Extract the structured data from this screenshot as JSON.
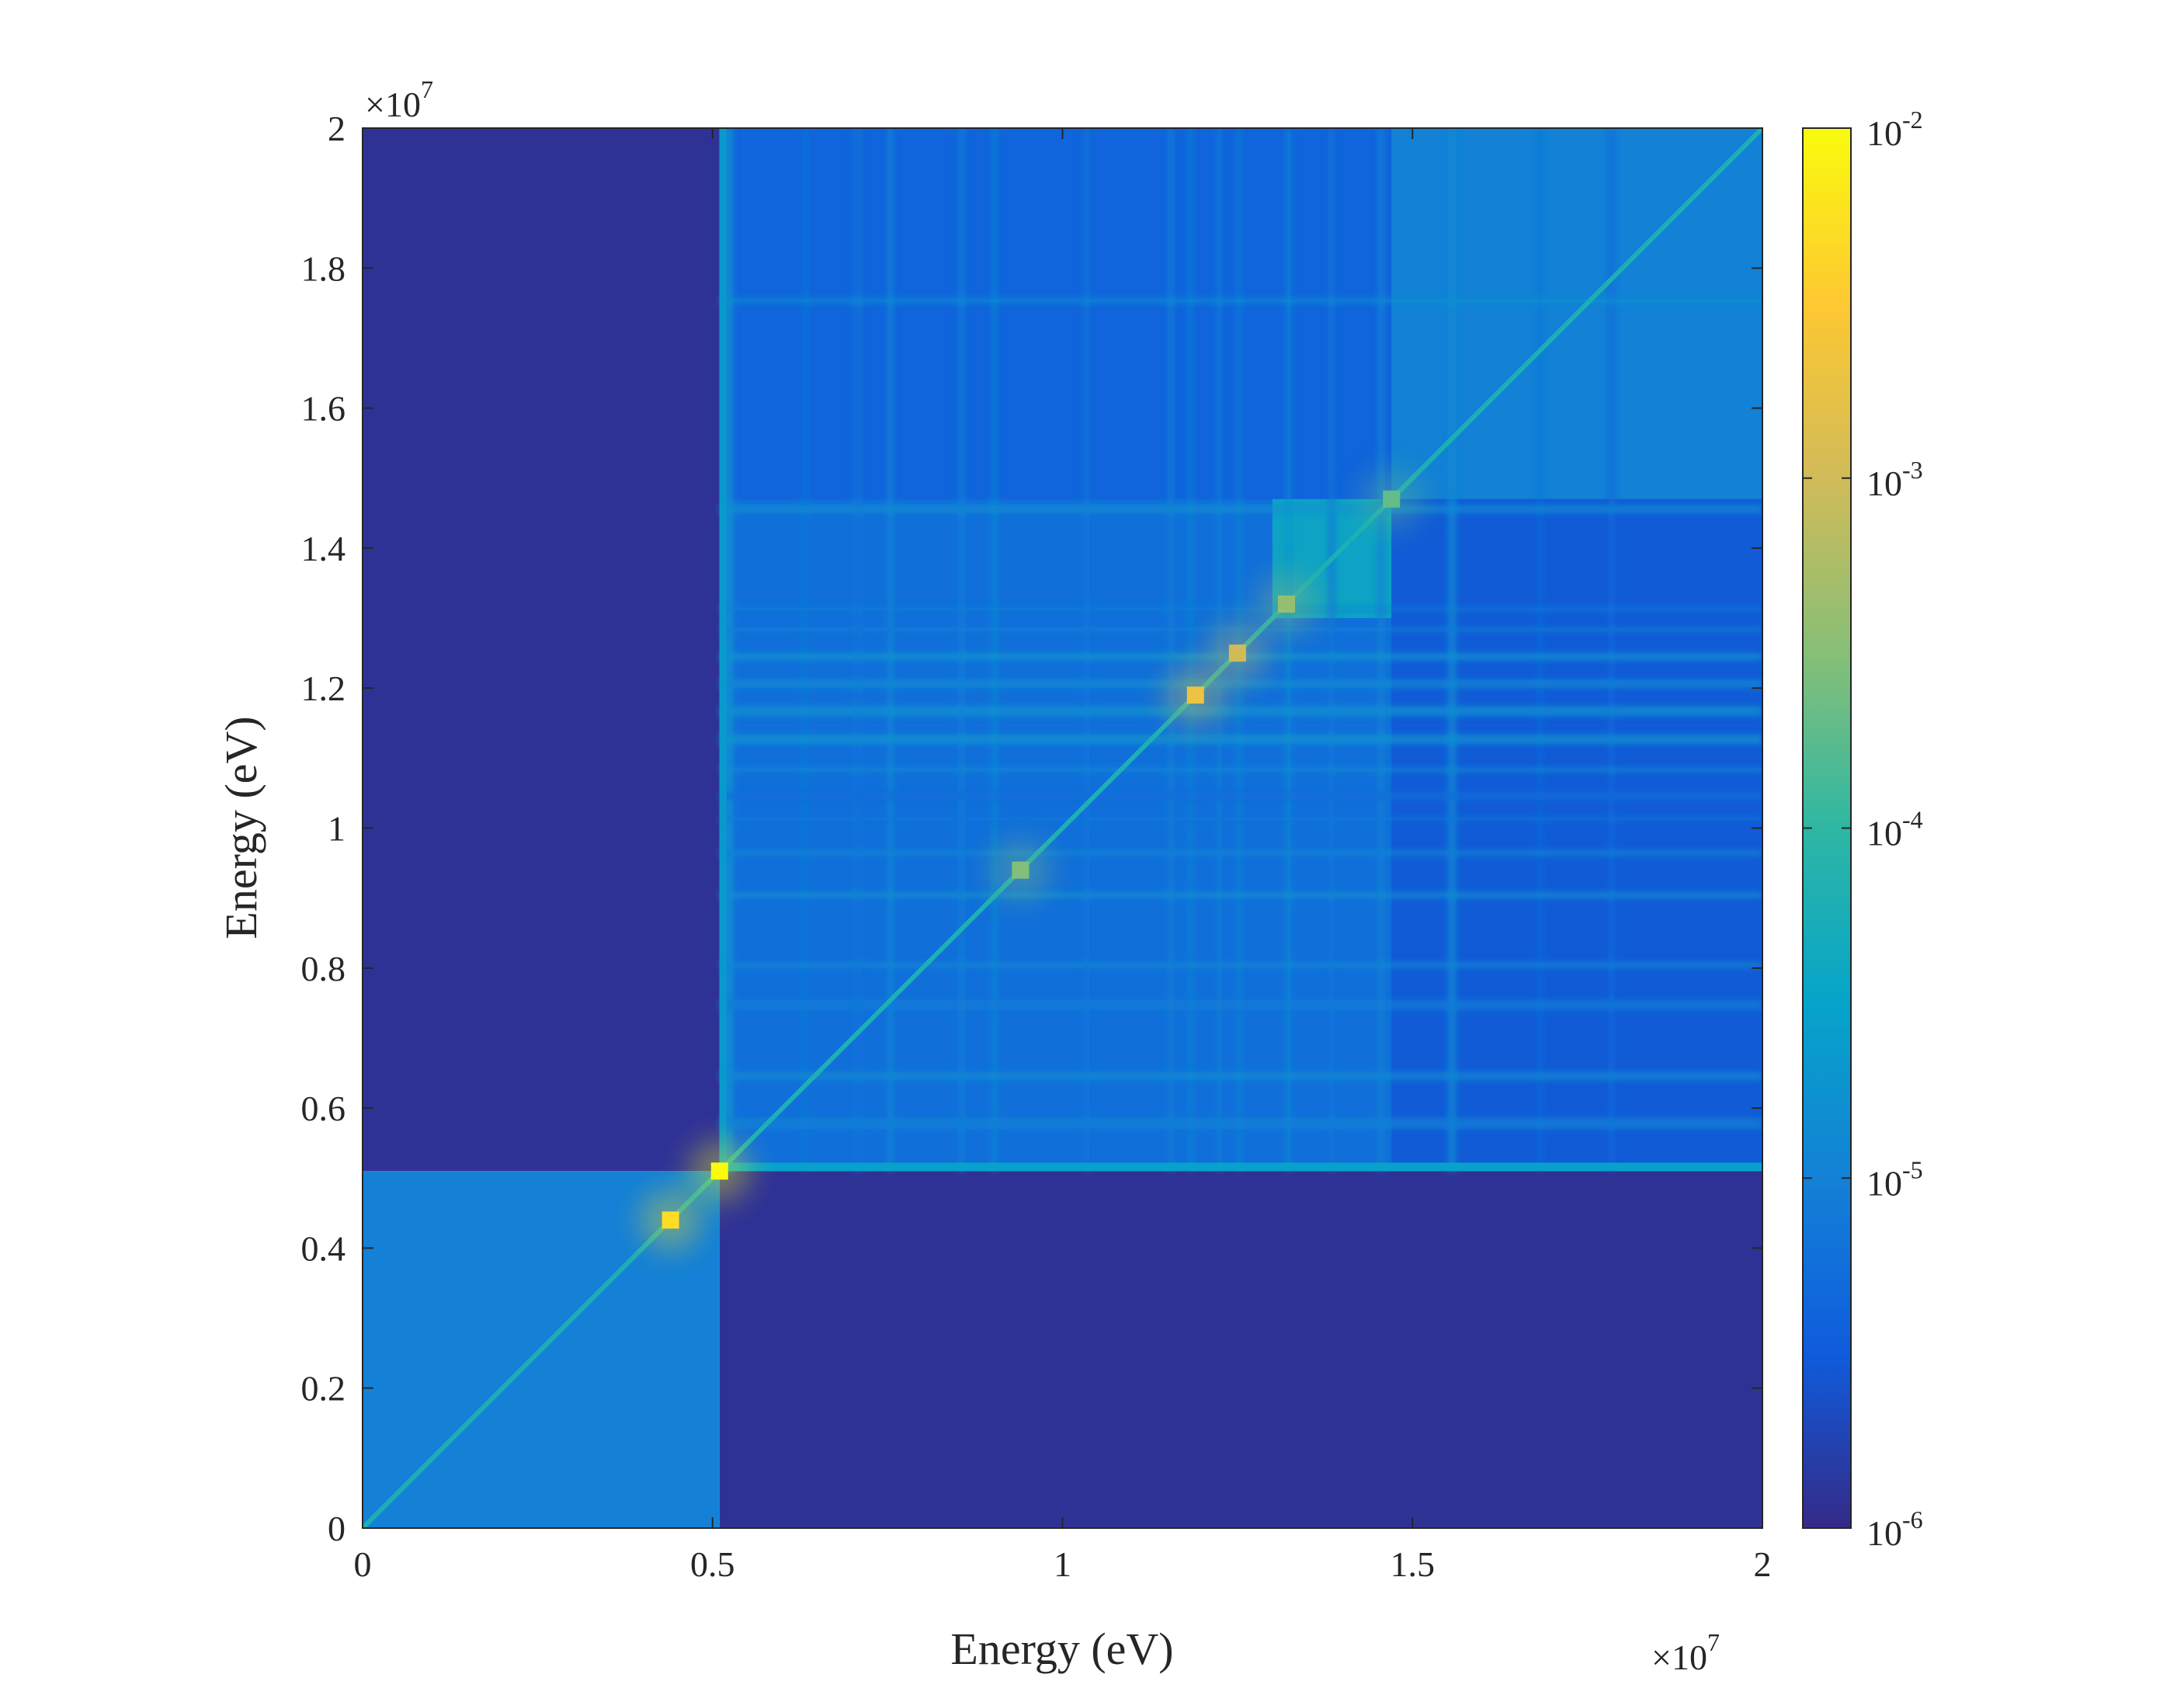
{
  "chart_data": {
    "type": "heatmap",
    "title": "",
    "xlabel": "Energy (eV)",
    "ylabel": "Energy (eV)",
    "x_multiplier": "×10",
    "x_multiplier_exp": "7",
    "y_multiplier": "×10",
    "y_multiplier_exp": "7",
    "xlim": [
      0,
      2
    ],
    "ylim": [
      0,
      2
    ],
    "x_ticks": [
      0,
      0.5,
      1,
      1.5,
      2
    ],
    "x_tick_labels": [
      "0",
      "0.5",
      "1",
      "1.5",
      "2"
    ],
    "y_ticks": [
      0,
      0.2,
      0.4,
      0.6,
      0.8,
      1,
      1.2,
      1.4,
      1.6,
      1.8,
      2
    ],
    "y_tick_labels": [
      "0",
      "0.2",
      "0.4",
      "0.6",
      "0.8",
      "1",
      "1.2",
      "1.4",
      "1.6",
      "1.8",
      "2"
    ],
    "colorbar": {
      "scale": "log",
      "range": [
        1e-06,
        0.01
      ],
      "tick_exponents": [
        -6,
        -5,
        -4,
        -3,
        -2
      ],
      "tick_base": "10",
      "tick_labels": [
        "-6",
        "-5",
        "-4",
        "-3",
        "-2"
      ],
      "colormap": "parula",
      "colors": [
        "#352a87",
        "#0f5cdd",
        "#1481d6",
        "#06a4ca",
        "#2eb7a4",
        "#87bf77",
        "#d1bb59",
        "#fec832",
        "#f9fb0e"
      ]
    },
    "block_boundary": 0.51,
    "regions": [
      {
        "name": "low-energy block (0–0.51 × 0–0.51)",
        "level": 1e-05
      },
      {
        "name": "off-diagonal blocks",
        "level": 1.2e-06
      },
      {
        "name": "high-energy block (0.51–2 × 0.51–2)",
        "level_range": [
          2e-06,
          0.0001
        ]
      }
    ],
    "diagonal_peaks": [
      {
        "energy": 0.44,
        "value": 0.005
      },
      {
        "energy": 0.51,
        "value": 0.01
      },
      {
        "energy": 0.94,
        "value": 0.0003
      },
      {
        "energy": 1.19,
        "value": 0.002
      },
      {
        "energy": 1.25,
        "value": 0.001
      },
      {
        "energy": 1.32,
        "value": 0.0004
      },
      {
        "energy": 1.47,
        "value": 0.0002
      }
    ]
  }
}
